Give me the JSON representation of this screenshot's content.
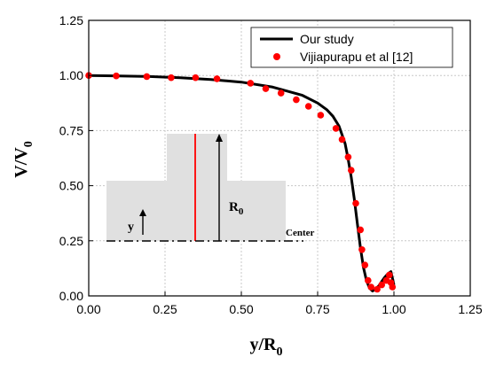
{
  "chart_data": {
    "type": "line",
    "xlabel": "y/R",
    "xlabel_sub": "0",
    "ylabel": "V/V",
    "ylabel_sub": "0",
    "xlim": [
      0,
      1.25
    ],
    "ylim": [
      0,
      1.25
    ],
    "x_ticks": [
      0,
      0.25,
      0.5,
      0.75,
      1.0,
      1.25
    ],
    "y_ticks": [
      0,
      0.25,
      0.5,
      0.75,
      1.0,
      1.25
    ],
    "x_tick_labels": [
      "0.00",
      "0.25",
      "0.50",
      "0.75",
      "1.00",
      "1.25"
    ],
    "y_tick_labels": [
      "0.00",
      "0.25",
      "0.50",
      "0.75",
      "1.00",
      "1.25"
    ],
    "grid": true,
    "legend_position": "top-right",
    "series": [
      {
        "name": "Our study",
        "style": "line",
        "color": "#000000",
        "x": [
          0,
          0.1,
          0.2,
          0.3,
          0.4,
          0.5,
          0.6,
          0.7,
          0.75,
          0.78,
          0.8,
          0.82,
          0.84,
          0.85,
          0.86,
          0.87,
          0.88,
          0.89,
          0.9,
          0.91,
          0.92,
          0.93,
          0.94,
          0.95,
          0.96,
          0.97,
          0.98,
          0.99,
          1.0
        ],
        "y": [
          1.0,
          0.998,
          0.995,
          0.99,
          0.982,
          0.97,
          0.948,
          0.91,
          0.875,
          0.845,
          0.815,
          0.77,
          0.69,
          0.62,
          0.54,
          0.44,
          0.33,
          0.22,
          0.13,
          0.07,
          0.035,
          0.022,
          0.03,
          0.045,
          0.065,
          0.085,
          0.1,
          0.11,
          0.05
        ]
      },
      {
        "name": "Vijiapurapu et al [12]",
        "style": "scatter",
        "color": "#ff0000",
        "x": [
          0.0,
          0.09,
          0.19,
          0.27,
          0.35,
          0.42,
          0.53,
          0.58,
          0.63,
          0.68,
          0.72,
          0.76,
          0.81,
          0.83,
          0.85,
          0.86,
          0.875,
          0.89,
          0.895,
          0.905,
          0.915,
          0.925,
          0.945,
          0.96,
          0.975,
          0.985,
          0.99,
          0.995
        ],
        "y": [
          1.0,
          0.998,
          0.995,
          0.99,
          0.99,
          0.985,
          0.965,
          0.94,
          0.92,
          0.89,
          0.86,
          0.82,
          0.76,
          0.71,
          0.63,
          0.57,
          0.42,
          0.3,
          0.21,
          0.14,
          0.07,
          0.04,
          0.03,
          0.05,
          0.07,
          0.095,
          0.06,
          0.04
        ]
      }
    ]
  },
  "inset": {
    "y_label": "y",
    "r_label": "R",
    "r_sub": "0",
    "center_label": "Center"
  }
}
